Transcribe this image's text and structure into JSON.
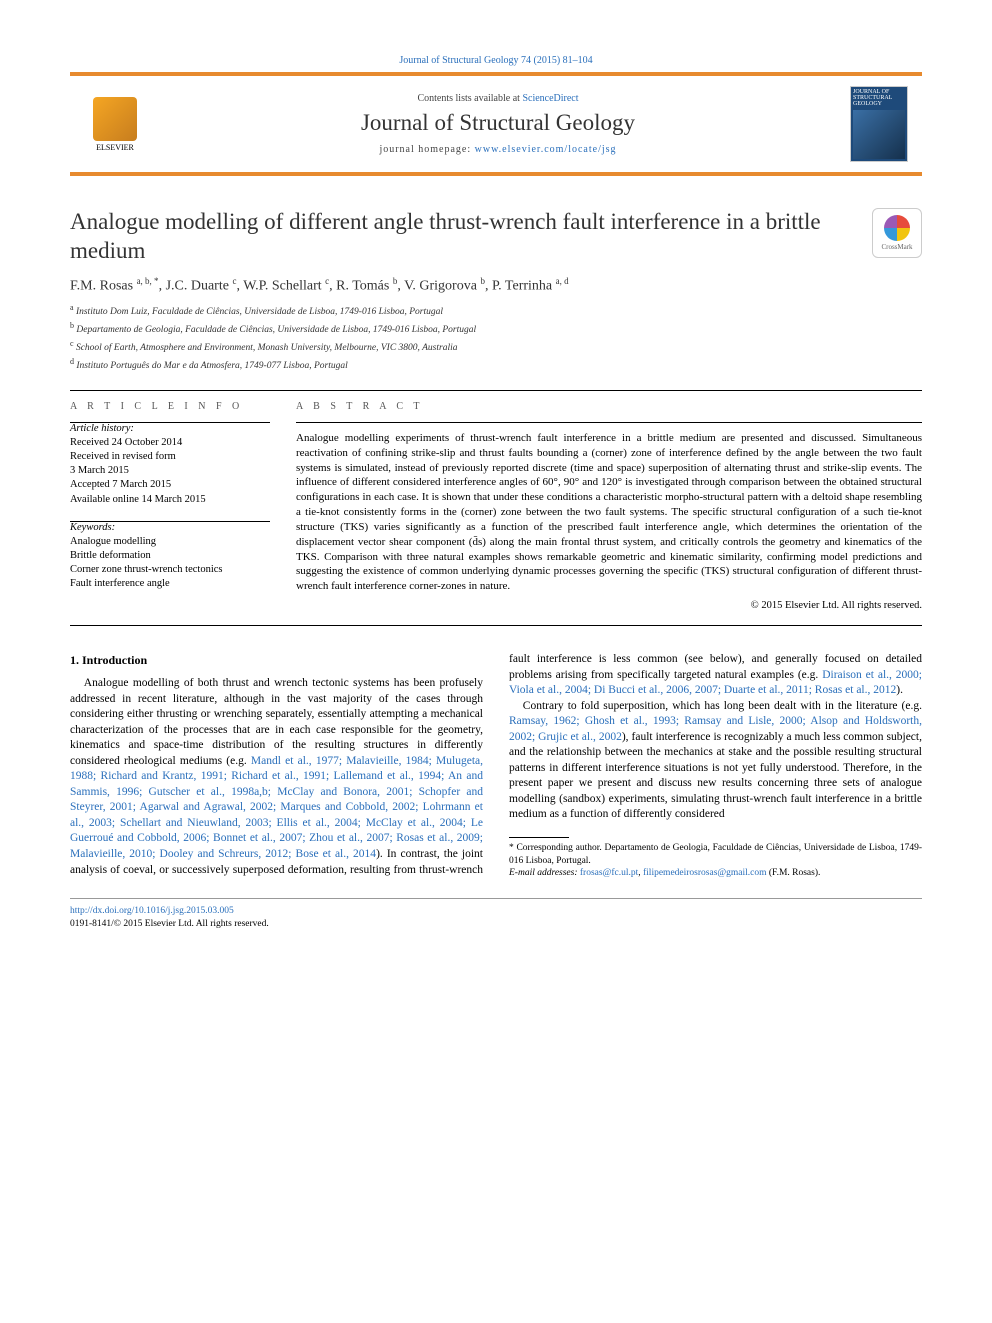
{
  "colors": {
    "accent_bar": "#e78a2e",
    "link": "#2a6fbb",
    "text": "#000000",
    "muted": "#444444",
    "bg": "#ffffff"
  },
  "top_citation": {
    "journal_link_text": "Journal of Structural Geology 74 (2015) 81–104"
  },
  "header": {
    "contents_prefix": "Contents lists available at ",
    "contents_link": "ScienceDirect",
    "journal_title": "Journal of Structural Geology",
    "homepage_prefix": "journal homepage: ",
    "homepage_link": "www.elsevier.com/locate/jsg",
    "publisher_label": "ELSEVIER",
    "cover_label": "JOURNAL OF STRUCTURAL GEOLOGY"
  },
  "crossmark_label": "CrossMark",
  "paper_title": "Analogue modelling of different angle thrust-wrench fault interference in a brittle medium",
  "authors_html": "F.M. Rosas <sup>a, b, *</sup>, J.C. Duarte <sup>c</sup>, W.P. Schellart <sup>c</sup>, R. Tomás <sup>b</sup>, V. Grigorova <sup>b</sup>, P. Terrinha <sup>a, d</sup>",
  "affiliations": [
    {
      "sup": "a",
      "text": "Instituto Dom Luiz, Faculdade de Ciências, Universidade de Lisboa, 1749-016 Lisboa, Portugal"
    },
    {
      "sup": "b",
      "text": "Departamento de Geologia, Faculdade de Ciências, Universidade de Lisboa, 1749-016 Lisboa, Portugal"
    },
    {
      "sup": "c",
      "text": "School of Earth, Atmosphere and Environment, Monash University, Melbourne, VIC 3800, Australia"
    },
    {
      "sup": "d",
      "text": "Instituto Português do Mar e da Atmosfera, 1749-077 Lisboa, Portugal"
    }
  ],
  "article_info_label": "A R T I C L E   I N F O",
  "abstract_label": "A B S T R A C T",
  "history": {
    "head": "Article history:",
    "lines": [
      "Received 24 October 2014",
      "Received in revised form",
      "3 March 2015",
      "Accepted 7 March 2015",
      "Available online 14 March 2015"
    ]
  },
  "keywords": {
    "head": "Keywords:",
    "items": [
      "Analogue modelling",
      "Brittle deformation",
      "Corner zone thrust-wrench tectonics",
      "Fault interference angle"
    ]
  },
  "abstract": "Analogue modelling experiments of thrust-wrench fault interference in a brittle medium are presented and discussed. Simultaneous reactivation of confining strike-slip and thrust faults bounding a (corner) zone of interference defined by the angle between the two fault systems is simulated, instead of previously reported discrete (time and space) superposition of alternating thrust and strike-slip events. The influence of different considered interference angles of 60°, 90° and 120° is investigated through comparison between the obtained structural configurations in each case. It is shown that under these conditions a characteristic morpho-structural pattern with a deltoid shape resembling a tie-knot consistently forms in the (corner) zone between the two fault systems. The specific structural configuration of a such tie-knot structure (TKS) varies significantly as a function of the prescribed fault interference angle, which determines the orientation of the displacement vector shear component (d̄s) along the main frontal thrust system, and critically controls the geometry and kinematics of the TKS. Comparison with three natural examples shows remarkable geometric and kinematic similarity, confirming model predictions and suggesting the existence of common underlying dynamic processes governing the specific (TKS) structural configuration of different thrust-wrench fault interference corner-zones in nature.",
  "copyright": "© 2015 Elsevier Ltd. All rights reserved.",
  "intro_heading": "1. Introduction",
  "intro_para1_pre": "Analogue modelling of both thrust and wrench tectonic systems has been profusely addressed in recent literature, although in the vast majority of the cases through considering either thrusting or wrenching separately, essentially attempting a mechanical characterization of the processes that are in each case responsible for the geometry, kinematics and space-time distribution of the resulting structures in differently considered rheological mediums (e.g. ",
  "intro_para1_link1": "Mandl et al., 1977; Malavieille, 1984; Mulugeta, 1988; Richard and Krantz, 1991; Richard et al., 1991; Lallemand et al., 1994; An and Sammis, 1996; Gutscher et al., 1998a,b; McClay and Bonora, 2001; Schopfer and Steyrer, 2001; Agarwal and Agrawal, 2002; Marques and Cobbold, 2002; Lohrmann et al., 2003; Schellart and",
  "intro_para1_link2": "Nieuwland, 2003; Ellis et al., 2004; McClay et al., 2004; Le Guerroué and Cobbold, 2006; Bonnet et al., 2007; Zhou et al., 2007; Rosas et al., 2009; Malavieille, 2010; Dooley and Schreurs, 2012; Bose et al., 2014",
  "intro_para1_mid": "). In contrast, the joint analysis of coeval, or successively superposed deformation, resulting from thrust-wrench fault interference is less common (see below), and generally focused on detailed problems arising from specifically targeted natural examples (e.g. ",
  "intro_para1_link3": "Diraison et al., 2000; Viola et al., 2004; Di Bucci et al., 2006, 2007; Duarte et al., 2011; Rosas et al., 2012",
  "intro_para1_post": ").",
  "intro_para2_pre": "Contrary to fold superposition, which has long been dealt with in the literature (e.g. ",
  "intro_para2_link1": "Ramsay, 1962; Ghosh et al., 1993; Ramsay and Lisle, 2000; Alsop and Holdsworth, 2002; Grujic et al., 2002",
  "intro_para2_post": "), fault interference is recognizably a much less common subject, and the relationship between the mechanics at stake and the possible resulting structural patterns in different interference situations is not yet fully understood. Therefore, in the present paper we present and discuss new results concerning three sets of analogue modelling (sandbox) experiments, simulating thrust-wrench fault interference in a brittle medium as a function of differently considered",
  "footnote": {
    "corr_pre": "* Corresponding author. Departamento de Geologia, Faculdade de Ciências, Universidade de Lisboa, 1749-016 Lisboa, Portugal.",
    "email_label": "E-mail addresses: ",
    "email1": "frosas@fc.ul.pt",
    "email_sep": ", ",
    "email2": "filipemedeirosrosas@gmail.com",
    "email_post": " (F.M. Rosas)."
  },
  "footer": {
    "doi": "http://dx.doi.org/10.1016/j.jsg.2015.03.005",
    "issn_line": "0191-8141/© 2015 Elsevier Ltd. All rights reserved."
  }
}
